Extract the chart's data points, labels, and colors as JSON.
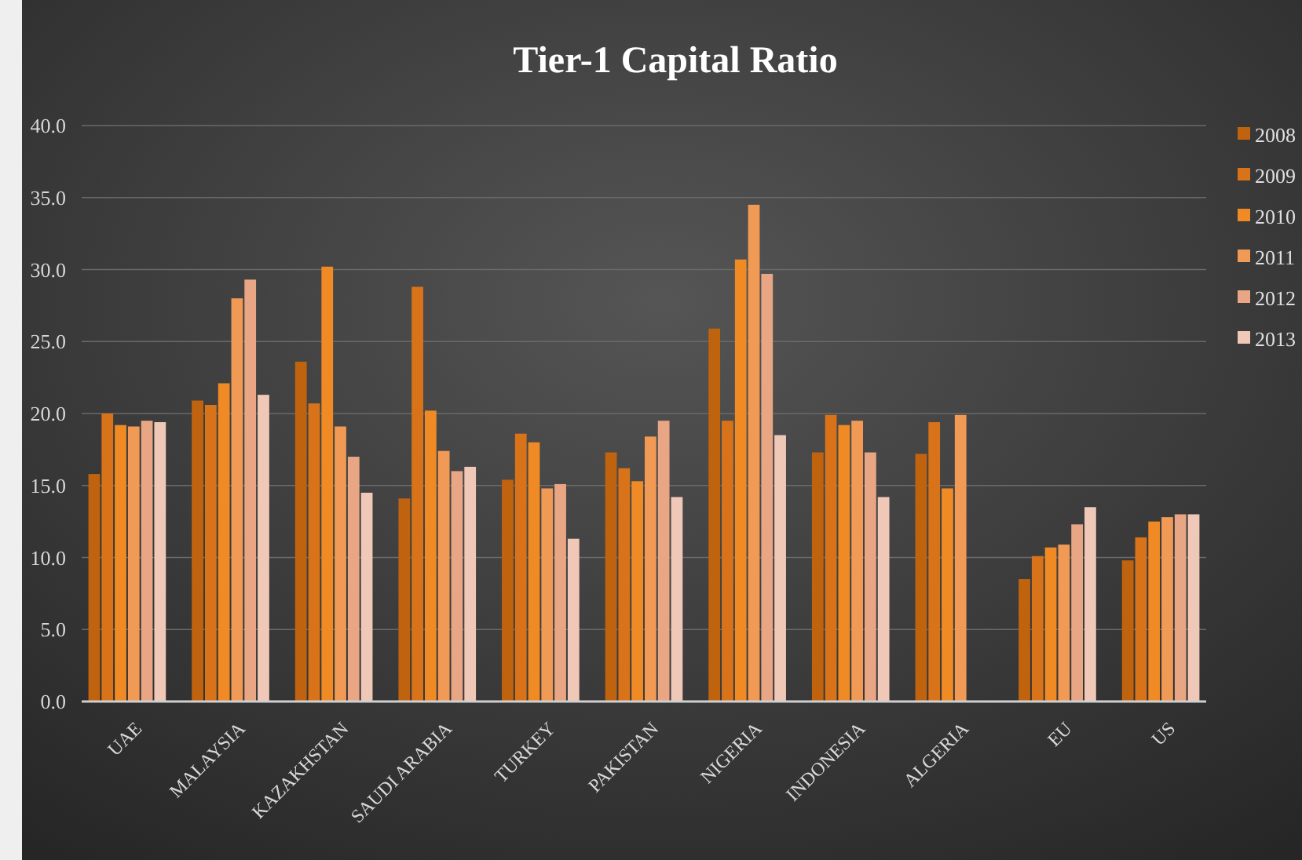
{
  "chart_data": {
    "type": "bar",
    "title": "Tier-1 Capital Ratio",
    "categories": [
      "UAE",
      "MALAYSIA",
      "KAZAKHSTAN",
      "SAUDI ARABIA",
      "TURKEY",
      "PAKISTAN",
      "NIGERIA",
      "INDONESIA",
      "ALGERIA",
      "EU",
      "US"
    ],
    "series": [
      {
        "name": "2008",
        "color": "#c0630f",
        "values": [
          15.8,
          20.9,
          23.6,
          14.1,
          15.4,
          17.3,
          25.9,
          17.3,
          17.2,
          8.5,
          9.8
        ]
      },
      {
        "name": "2009",
        "color": "#d9731a",
        "values": [
          20.0,
          20.6,
          20.7,
          28.8,
          18.6,
          16.2,
          19.5,
          19.9,
          19.4,
          10.1,
          11.4
        ]
      },
      {
        "name": "2010",
        "color": "#f08a24",
        "values": [
          19.2,
          22.1,
          30.2,
          20.2,
          18.0,
          15.3,
          30.7,
          19.2,
          14.8,
          10.7,
          12.5
        ]
      },
      {
        "name": "2011",
        "color": "#f09a55",
        "values": [
          19.1,
          28.0,
          19.1,
          17.4,
          14.8,
          18.4,
          34.5,
          19.5,
          19.9,
          10.9,
          12.8
        ]
      },
      {
        "name": "2012",
        "color": "#e8a684",
        "values": [
          19.5,
          29.3,
          17.0,
          16.0,
          15.1,
          19.5,
          29.7,
          17.3,
          null,
          12.3,
          13.0
        ]
      },
      {
        "name": "2013",
        "color": "#f0c8b8",
        "values": [
          19.4,
          21.3,
          14.5,
          16.3,
          11.3,
          14.2,
          18.5,
          14.2,
          null,
          13.5,
          13.0
        ]
      }
    ],
    "ylim": [
      0,
      40
    ],
    "yticks": [
      {
        "value": 0,
        "label": "0.0"
      },
      {
        "value": 5,
        "label": "5.0"
      },
      {
        "value": 10,
        "label": "10.0"
      },
      {
        "value": 15,
        "label": "15.0"
      },
      {
        "value": 20,
        "label": "20.0"
      },
      {
        "value": 25,
        "label": "25.0"
      },
      {
        "value": 30,
        "label": "30.0"
      },
      {
        "value": 35,
        "label": "35.0"
      },
      {
        "value": 40,
        "label": "40.0"
      }
    ],
    "grid": "y",
    "legend": "right"
  }
}
